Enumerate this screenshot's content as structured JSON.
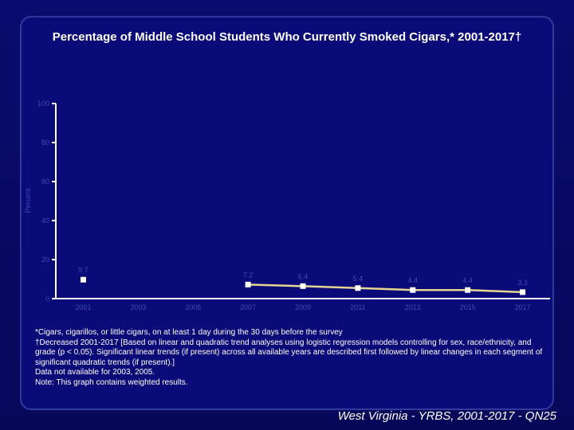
{
  "chart_data": {
    "type": "line",
    "title": "Percentage of Middle School Students Who Currently Smoked Cigars,* 2001-2017†",
    "y_label": "Percent",
    "categories": [
      "2001",
      "2003",
      "2005",
      "2007",
      "2009",
      "2011",
      "2013",
      "2015",
      "2017"
    ],
    "series": [
      {
        "name": "Cigars",
        "color": "#e6d592",
        "values": [
          9.7,
          null,
          null,
          7.2,
          6.4,
          5.4,
          4.4,
          4.4,
          3.3
        ]
      }
    ],
    "ylim": [
      0,
      100
    ],
    "yticks": [
      0,
      20,
      40,
      60,
      80,
      100
    ],
    "notes": [
      "*Cigars, cigarillos, or little cigars, on at least 1 day during the 30 days before the survey",
      "†Decreased 2001-2017 [Based on linear and quadratic trend analyses using logistic regression models controlling for sex, race/ethnicity, and grade (p < 0.05). Significant linear trends (if present) across all available years are described first followed by linear changes in each segment of significant quadratic trends (if present).]",
      "Data not available for 2003, 2005.",
      "Note: This graph contains weighted results."
    ],
    "footer": "West Virginia - YRBS, 2001-2017 - QN25"
  }
}
